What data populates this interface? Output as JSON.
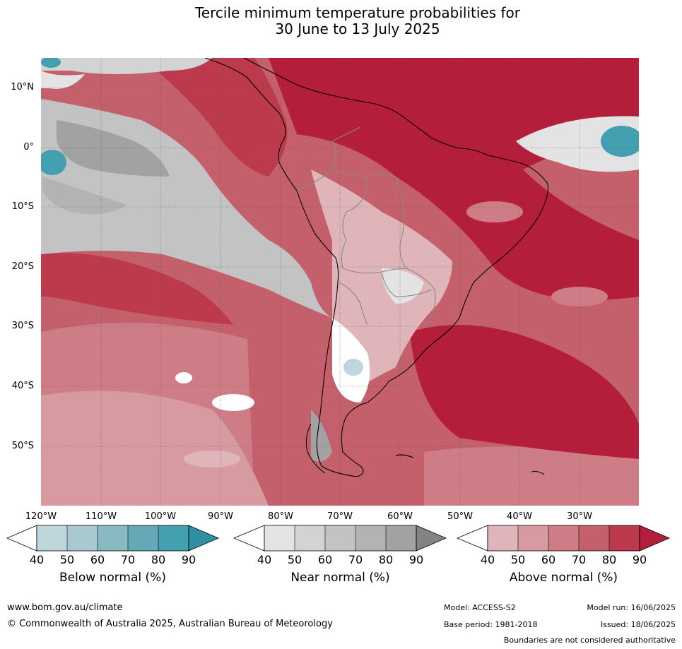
{
  "title": {
    "line1": "Tercile minimum temperature probabilities for",
    "line2": "30 June to 13 July 2025"
  },
  "axes": {
    "lat_labels": [
      "10°N",
      "0°",
      "10°S",
      "20°S",
      "30°S",
      "40°S",
      "50°S"
    ],
    "lon_labels": [
      "120°W",
      "110°W",
      "100°W",
      "90°W",
      "80°W",
      "70°W",
      "60°W",
      "50°W",
      "40°W",
      "30°W"
    ]
  },
  "colorbars": [
    {
      "title": "Below normal (%)",
      "ticks": [
        "40",
        "50",
        "60",
        "70",
        "80",
        "90"
      ],
      "colors": [
        "#ffffff",
        "#bed6dc",
        "#a7c9cf",
        "#89b9c2",
        "#66a9b6",
        "#44a0b0",
        "#2f8fa2"
      ]
    },
    {
      "title": "Near normal (%)",
      "ticks": [
        "40",
        "50",
        "60",
        "70",
        "80",
        "90"
      ],
      "colors": [
        "#ffffff",
        "#e3e3e3",
        "#d3d3d3",
        "#c3c3c3",
        "#b3b3b3",
        "#a2a2a2",
        "#838383"
      ]
    },
    {
      "title": "Above normal (%)",
      "ticks": [
        "40",
        "50",
        "60",
        "70",
        "80",
        "90"
      ],
      "colors": [
        "#ffffff",
        "#e0b5ba",
        "#d79aa1",
        "#ce7d86",
        "#c4606b",
        "#bc3a4c",
        "#b51e3a"
      ]
    }
  ],
  "footer": {
    "website": "www.bom.gov.au/climate",
    "copyright": "© Commonwealth of Australia 2025, Australian Bureau of Meteorology",
    "model": "Model: ACCESS-S2",
    "base_period": "Base period: 1981-2018",
    "model_run": "Model run: 16/06/2025",
    "issued": "Issued: 18/06/2025",
    "disclaimer": "Boundaries are not considered authoritative"
  }
}
